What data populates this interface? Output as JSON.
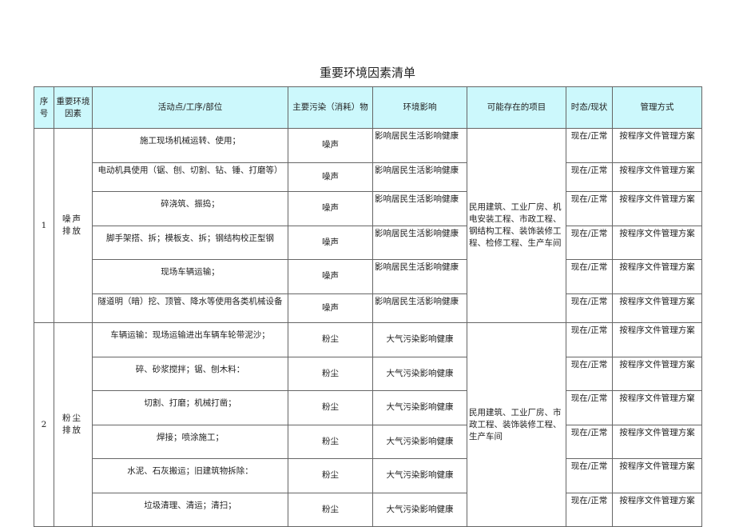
{
  "title": "重要环境因素清单",
  "headers": [
    "序号",
    "重要环境因素",
    "活动点/工序/部位",
    "主要污染（消耗）物",
    "环境影响",
    "可能存在的项目",
    "时态/现状",
    "管理方式"
  ],
  "groups": [
    {
      "no": "1",
      "factor": "噪声排放",
      "projects": "民用建筑、工业厂房、机电安装工程、市政工程、钢结构工程、装饰装修工程、检修工程、生产车间",
      "rows": [
        {
          "activity": "施工现场机械运转、使用；",
          "pollutant": "噪声",
          "impact": "影响居民生活影响健康",
          "state": "现在/正常",
          "mgmt": "按程序文件管理方案"
        },
        {
          "activity": "电动机具使用（锯、刨、切割、钻、锤、打磨等）",
          "pollutant": "噪声",
          "impact": "影响居民生活影响健康",
          "state": "现在/正常",
          "mgmt": "按程序文件管理方案"
        },
        {
          "activity": "碎浇筑、振捣；",
          "pollutant": "噪声",
          "impact": "影响居民生活影响健康",
          "state": "现在/正常",
          "mgmt": "按程序文件管理方案"
        },
        {
          "activity": "脚手架搭、拆；模板支、拆；钢结构校正型钢",
          "pollutant": "噪声",
          "impact": "影响居民生活影响健康",
          "state": "现在/正常",
          "mgmt": "按程序文件管理方案"
        },
        {
          "activity": "现场车辆运输；",
          "pollutant": "噪声",
          "impact": "影响居民生活影响健康",
          "state": "现在/正常",
          "mgmt": "按程序文件管理方案"
        },
        {
          "activity": "隧道明（暗）挖、顶管、降水等使用各类机械设备",
          "pollutant": "噪声",
          "impact": "影响居民生活影响健康",
          "state": "现在/正常",
          "mgmt": "按程序文件管理方案"
        }
      ]
    },
    {
      "no": "2",
      "factor": "粉尘排放",
      "projects": "民用建筑、工业厂房、市政工程、装饰装修工程、生产车间",
      "rows": [
        {
          "activity": "车辆运输：现场运输进出车辆车轮带泥沙；",
          "pollutant": "粉尘",
          "impact": "大气污染影响健康",
          "state": "现在/正常",
          "mgmt": "按程序文件管理方案"
        },
        {
          "activity": "碎、砂浆搅拌；锯、刨木料：",
          "pollutant": "粉尘",
          "impact": "大气污染影响健康",
          "state": "现在/正常",
          "mgmt": "按程序文件管理方案"
        },
        {
          "activity": "切割、打磨；机械打凿；",
          "pollutant": "粉尘",
          "impact": "大气污染影响健康",
          "state": "现在/正常",
          "mgmt": "按程序文件管理方窠"
        },
        {
          "activity": "焊接；喷涂施工；",
          "pollutant": "粉尘",
          "impact": "大气污染影响健康",
          "state": "现在/正常",
          "mgmt": "按程序文件管理方案"
        },
        {
          "activity": "水泥、石灰搬运；旧建筑物拆除：",
          "pollutant": "粉尘",
          "impact": "大气污染影响健康",
          "state": "现在/正常",
          "mgmt": "按程序文件管理方案"
        },
        {
          "activity": "垃圾清理、清运；清扫；",
          "pollutant": "粉尘",
          "impact": "大气污染影响健康",
          "state": "现在/正常",
          "mgmt": "按程序文件管理方案"
        }
      ]
    }
  ]
}
